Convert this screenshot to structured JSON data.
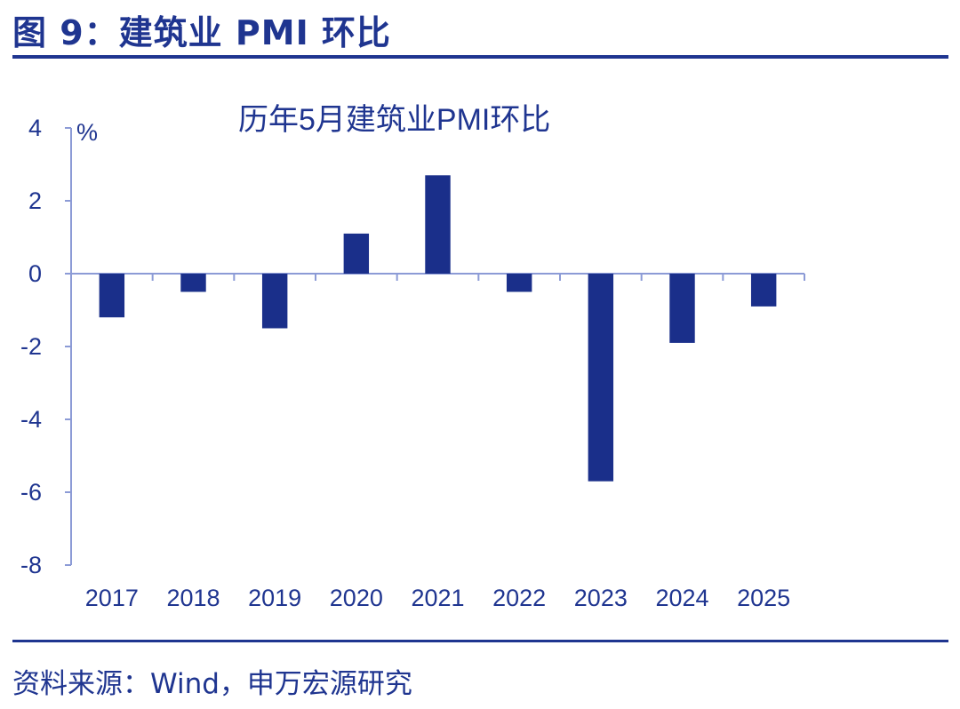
{
  "figure_title": "图 9：建筑业 PMI 环比",
  "source_note": "资料来源：Wind，申万宏源研究",
  "colors": {
    "accent": "#1f3590",
    "bar": "#1a2f8a",
    "axis": "#8c9bd6"
  },
  "chart_data": {
    "type": "bar",
    "title": "历年5月建筑业PMI环比",
    "unit_label": "%",
    "categories": [
      "2017",
      "2018",
      "2019",
      "2020",
      "2021",
      "2022",
      "2023",
      "2024",
      "2025"
    ],
    "values": [
      -1.2,
      -0.5,
      -1.5,
      1.1,
      2.7,
      -0.5,
      -5.7,
      -1.9,
      -0.9
    ],
    "ylim": [
      -8,
      4
    ],
    "yticks": [
      4,
      2,
      0,
      -2,
      -4,
      -6,
      -8
    ],
    "xlabel": "",
    "ylabel": "%",
    "legend": "none",
    "grid": false
  }
}
